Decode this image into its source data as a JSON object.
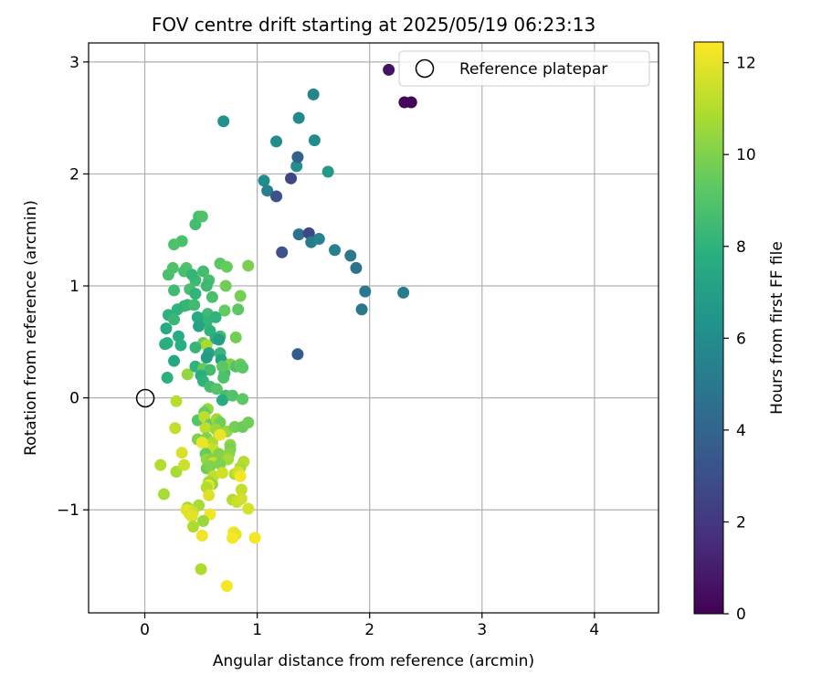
{
  "chart_data": {
    "type": "scatter",
    "title": "FOV centre drift starting at 2025/05/19 06:23:13",
    "xlabel": "Angular distance from reference (arcmin)",
    "ylabel": "Rotation from reference (arcmin)",
    "xlim": [
      -0.5,
      4.57
    ],
    "ylim": [
      -1.92,
      3.17
    ],
    "x_ticks": [
      0,
      1,
      2,
      3,
      4
    ],
    "y_ticks": [
      -1,
      0,
      1,
      2,
      3
    ],
    "grid": true,
    "legend": {
      "placement": "top-right",
      "entries": [
        "Reference platepar"
      ]
    },
    "colorbar": {
      "label": "Hours from first FF file",
      "colormap": "viridis",
      "range": [
        0,
        12.45
      ],
      "ticks": [
        0,
        2,
        4,
        6,
        8,
        10,
        12
      ]
    },
    "reference_point": {
      "name": "Reference platepar",
      "x": 0,
      "y": 0
    },
    "points": [
      [
        2.17,
        2.93,
        0.6
      ],
      [
        2.31,
        2.64,
        0.3
      ],
      [
        2.37,
        2.64,
        0.1
      ],
      [
        1.5,
        2.71,
        5.6
      ],
      [
        1.37,
        2.5,
        5.8
      ],
      [
        1.51,
        2.3,
        5.9
      ],
      [
        1.17,
        2.29,
        6.0
      ],
      [
        0.7,
        2.47,
        6.3
      ],
      [
        1.63,
        2.02,
        6.7
      ],
      [
        1.35,
        2.07,
        6.1
      ],
      [
        1.36,
        2.15,
        3.8
      ],
      [
        1.3,
        1.96,
        2.6
      ],
      [
        1.06,
        1.94,
        5.9
      ],
      [
        1.09,
        1.85,
        5.3
      ],
      [
        1.17,
        1.8,
        3.1
      ],
      [
        1.37,
        1.46,
        4.6
      ],
      [
        1.46,
        1.47,
        2.7
      ],
      [
        1.48,
        1.39,
        5.2
      ],
      [
        1.55,
        1.42,
        5.5
      ],
      [
        1.69,
        1.32,
        5.3
      ],
      [
        1.83,
        1.27,
        5.0
      ],
      [
        1.88,
        1.16,
        4.7
      ],
      [
        1.22,
        1.3,
        3.1
      ],
      [
        1.96,
        0.95,
        5.0
      ],
      [
        2.3,
        0.94,
        5.2
      ],
      [
        1.93,
        0.79,
        4.9
      ],
      [
        1.36,
        0.39,
        3.6
      ],
      [
        0.48,
        1.62,
        8.7
      ],
      [
        0.45,
        1.55,
        8.6
      ],
      [
        0.51,
        1.62,
        8.9
      ],
      [
        0.33,
        1.4,
        8.8
      ],
      [
        0.26,
        1.37,
        8.9
      ],
      [
        0.21,
        1.1,
        8.8
      ],
      [
        0.25,
        1.16,
        8.9
      ],
      [
        0.37,
        1.16,
        9.0
      ],
      [
        0.35,
        1.13,
        8.8
      ],
      [
        0.45,
        1.05,
        8.4
      ],
      [
        0.52,
        1.13,
        8.6
      ],
      [
        0.57,
        1.05,
        8.7
      ],
      [
        0.42,
        1.1,
        8.2
      ],
      [
        0.55,
        1.0,
        8.4
      ],
      [
        0.67,
        1.2,
        9.2
      ],
      [
        0.73,
        1.17,
        9.5
      ],
      [
        0.92,
        1.18,
        9.9
      ],
      [
        0.4,
        0.97,
        8.7
      ],
      [
        0.45,
        0.93,
        8.1
      ],
      [
        0.26,
        0.96,
        8.5
      ],
      [
        0.35,
        0.82,
        8.4
      ],
      [
        0.29,
        0.79,
        8.0
      ],
      [
        0.38,
        0.83,
        8.2
      ],
      [
        0.44,
        0.83,
        8.5
      ],
      [
        0.6,
        0.9,
        8.8
      ],
      [
        0.72,
        1.0,
        9.7
      ],
      [
        0.85,
        0.91,
        9.8
      ],
      [
        0.83,
        0.79,
        9.3
      ],
      [
        0.71,
        0.78,
        9.4
      ],
      [
        0.56,
        0.75,
        8.5
      ],
      [
        0.63,
        0.72,
        8.0
      ],
      [
        0.55,
        0.68,
        8.2
      ],
      [
        0.47,
        0.72,
        7.5
      ],
      [
        0.48,
        0.64,
        7.2
      ],
      [
        0.58,
        0.6,
        8.0
      ],
      [
        0.67,
        0.55,
        8.6
      ],
      [
        0.63,
        0.53,
        7.8
      ],
      [
        0.66,
        0.52,
        7.0
      ],
      [
        0.81,
        0.54,
        9.7
      ],
      [
        0.21,
        0.74,
        7.9
      ],
      [
        0.19,
        0.62,
        7.5
      ],
      [
        0.26,
        0.7,
        8.3
      ],
      [
        0.2,
        0.49,
        8.0
      ],
      [
        0.18,
        0.48,
        7.8
      ],
      [
        0.3,
        0.55,
        7.7
      ],
      [
        0.32,
        0.47,
        7.8
      ],
      [
        0.52,
        0.49,
        9.6
      ],
      [
        0.55,
        0.47,
        10.8
      ],
      [
        0.45,
        0.45,
        8.2
      ],
      [
        0.57,
        0.4,
        7.2
      ],
      [
        0.67,
        0.4,
        8.3
      ],
      [
        0.55,
        0.36,
        6.8
      ],
      [
        0.68,
        0.34,
        7.2
      ],
      [
        0.26,
        0.33,
        7.4
      ],
      [
        0.2,
        0.18,
        7.9
      ],
      [
        0.38,
        0.21,
        10.4
      ],
      [
        0.45,
        0.28,
        8.0
      ],
      [
        0.52,
        0.26,
        9.4
      ],
      [
        0.58,
        0.25,
        8.6
      ],
      [
        0.5,
        0.2,
        7.8
      ],
      [
        0.52,
        0.15,
        8.0
      ],
      [
        0.58,
        0.1,
        8.6
      ],
      [
        0.64,
        0.08,
        9.0
      ],
      [
        0.71,
        0.22,
        8.5
      ],
      [
        0.76,
        0.3,
        10.1
      ],
      [
        0.69,
        0.28,
        9.2
      ],
      [
        0.81,
        0.28,
        9.0
      ],
      [
        0.85,
        0.3,
        9.5
      ],
      [
        0.87,
        0.27,
        9.2
      ],
      [
        0.7,
        0.18,
        8.9
      ],
      [
        0.72,
        0.02,
        8.7
      ],
      [
        0.69,
        -0.02,
        7.6
      ],
      [
        0.78,
        0.02,
        9.0
      ],
      [
        0.87,
        -0.01,
        9.3
      ],
      [
        0.56,
        -0.1,
        10.4
      ],
      [
        0.47,
        -0.2,
        9.1
      ],
      [
        0.53,
        -0.13,
        9.5
      ],
      [
        0.53,
        -0.17,
        11.2
      ],
      [
        0.58,
        -0.24,
        9.5
      ],
      [
        0.64,
        -0.19,
        10.6
      ],
      [
        0.67,
        -0.22,
        9.7
      ],
      [
        0.28,
        -0.03,
        11.1
      ],
      [
        0.27,
        -0.27,
        11.3
      ],
      [
        0.54,
        -0.27,
        11.2
      ],
      [
        0.63,
        -0.28,
        10.5
      ],
      [
        0.66,
        -0.33,
        10.9
      ],
      [
        0.73,
        -0.3,
        10.5
      ],
      [
        0.8,
        -0.26,
        9.8
      ],
      [
        0.87,
        -0.26,
        9.6
      ],
      [
        0.92,
        -0.22,
        9.7
      ],
      [
        0.76,
        -0.42,
        10.2
      ],
      [
        0.47,
        -0.37,
        10.0
      ],
      [
        0.55,
        -0.36,
        10.0
      ],
      [
        0.6,
        -0.4,
        10.9
      ],
      [
        0.67,
        -0.33,
        12.1
      ],
      [
        0.51,
        -0.4,
        12.1
      ],
      [
        0.59,
        -0.46,
        12.0
      ],
      [
        0.61,
        -0.46,
        11.4
      ],
      [
        0.76,
        -0.46,
        9.9
      ],
      [
        0.33,
        -0.49,
        11.7
      ],
      [
        0.54,
        -0.5,
        9.5
      ],
      [
        0.55,
        -0.55,
        10.4
      ],
      [
        0.6,
        -0.55,
        10.1
      ],
      [
        0.66,
        -0.5,
        10.1
      ],
      [
        0.75,
        -0.5,
        10.2
      ],
      [
        0.74,
        -0.55,
        10.7
      ],
      [
        0.88,
        -0.57,
        11.1
      ],
      [
        0.61,
        -0.58,
        11.4
      ],
      [
        0.67,
        -0.59,
        10.0
      ],
      [
        0.8,
        -0.68,
        11.0
      ],
      [
        0.85,
        -0.62,
        10.8
      ],
      [
        0.14,
        -0.6,
        11.0
      ],
      [
        0.28,
        -0.66,
        10.8
      ],
      [
        0.35,
        -0.6,
        11.5
      ],
      [
        0.55,
        -0.63,
        9.7
      ],
      [
        0.58,
        -0.61,
        10.0
      ],
      [
        0.61,
        -0.7,
        11.3
      ],
      [
        0.69,
        -0.67,
        11.6
      ],
      [
        0.83,
        -0.66,
        11.6
      ],
      [
        0.85,
        -0.7,
        12.3
      ],
      [
        0.57,
        -0.75,
        10.6
      ],
      [
        0.6,
        -0.77,
        10.4
      ],
      [
        0.57,
        -0.78,
        12.0
      ],
      [
        0.55,
        -0.8,
        11.0
      ],
      [
        0.86,
        -0.82,
        11.3
      ],
      [
        0.17,
        -0.86,
        10.8
      ],
      [
        0.57,
        -0.87,
        11.8
      ],
      [
        0.78,
        -0.91,
        11.0
      ],
      [
        0.82,
        -0.93,
        11.4
      ],
      [
        0.86,
        -0.9,
        11.6
      ],
      [
        0.48,
        -0.96,
        10.8
      ],
      [
        0.38,
        -0.98,
        10.7
      ],
      [
        0.37,
        -1.0,
        11.9
      ],
      [
        0.4,
        -1.01,
        12.1
      ],
      [
        0.43,
        -1.02,
        11.5
      ],
      [
        0.92,
        -0.99,
        11.7
      ],
      [
        0.4,
        -1.04,
        11.8
      ],
      [
        0.42,
        -1.06,
        11.9
      ],
      [
        0.58,
        -1.04,
        12.2
      ],
      [
        0.52,
        -1.1,
        10.5
      ],
      [
        0.43,
        -1.15,
        10.9
      ],
      [
        0.79,
        -1.2,
        12.2
      ],
      [
        0.81,
        -1.22,
        12.0
      ],
      [
        0.51,
        -1.23,
        12.2
      ],
      [
        0.78,
        -1.25,
        12.3
      ],
      [
        0.98,
        -1.25,
        12.3
      ],
      [
        0.5,
        -1.53,
        10.9
      ],
      [
        0.73,
        -1.68,
        12.3
      ]
    ]
  }
}
